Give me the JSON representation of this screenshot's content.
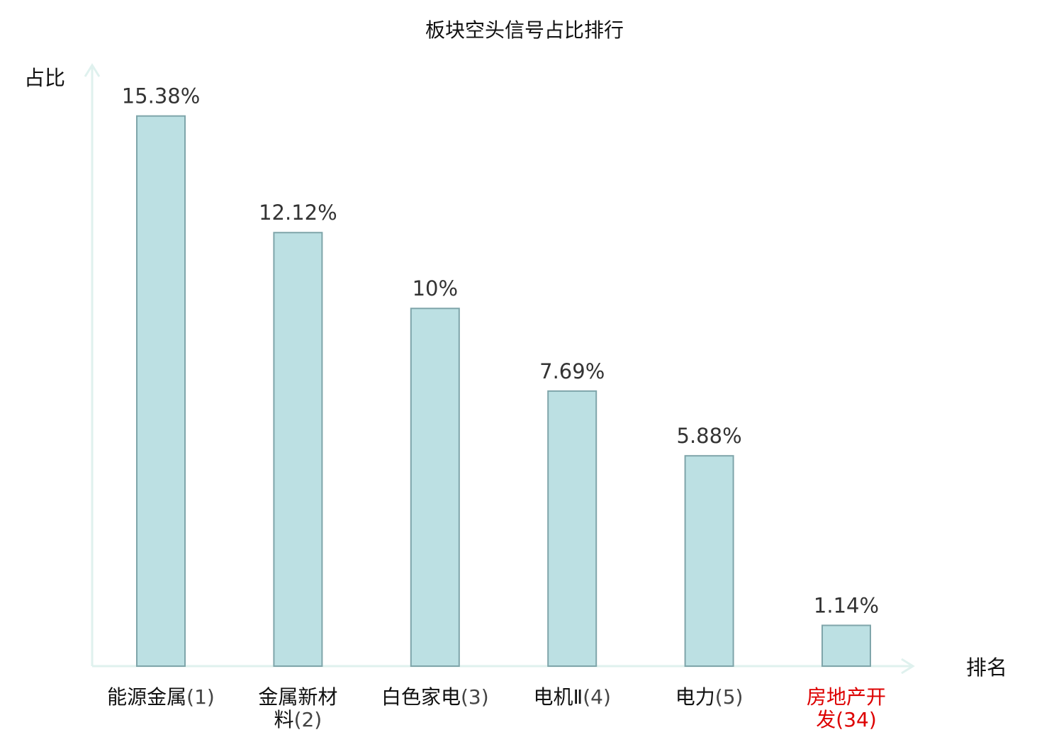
{
  "chart_data": {
    "type": "bar",
    "title": "板块空头信号占比排行",
    "ylabel": "占比",
    "xlabel": "排名",
    "categories": [
      {
        "name_lines": [
          "能源金属"
        ],
        "rank": "(1)",
        "highlight": false
      },
      {
        "name_lines": [
          "金属新材",
          "料"
        ],
        "rank": "(2)",
        "highlight": false
      },
      {
        "name_lines": [
          "白色家电"
        ],
        "rank": "(3)",
        "highlight": false
      },
      {
        "name_lines": [
          "电机Ⅱ"
        ],
        "rank": "(4)",
        "highlight": false
      },
      {
        "name_lines": [
          "电力"
        ],
        "rank": "(5)",
        "highlight": false
      },
      {
        "name_lines": [
          "房地产开",
          "发"
        ],
        "rank": "(34)",
        "highlight": true
      }
    ],
    "values": [
      15.38,
      12.12,
      10,
      7.69,
      5.88,
      1.14
    ],
    "value_labels": [
      "15.38%",
      "12.12%",
      "10%",
      "7.69%",
      "5.88%",
      "1.14%"
    ],
    "ylim": [
      0,
      16.8
    ],
    "grid": false,
    "legend": "none",
    "colors": {
      "bar_fill": "#bce0e3",
      "bar_stroke": "#7fa5aa",
      "axis": "#dff1ee",
      "highlight_text": "#dd0000"
    }
  }
}
